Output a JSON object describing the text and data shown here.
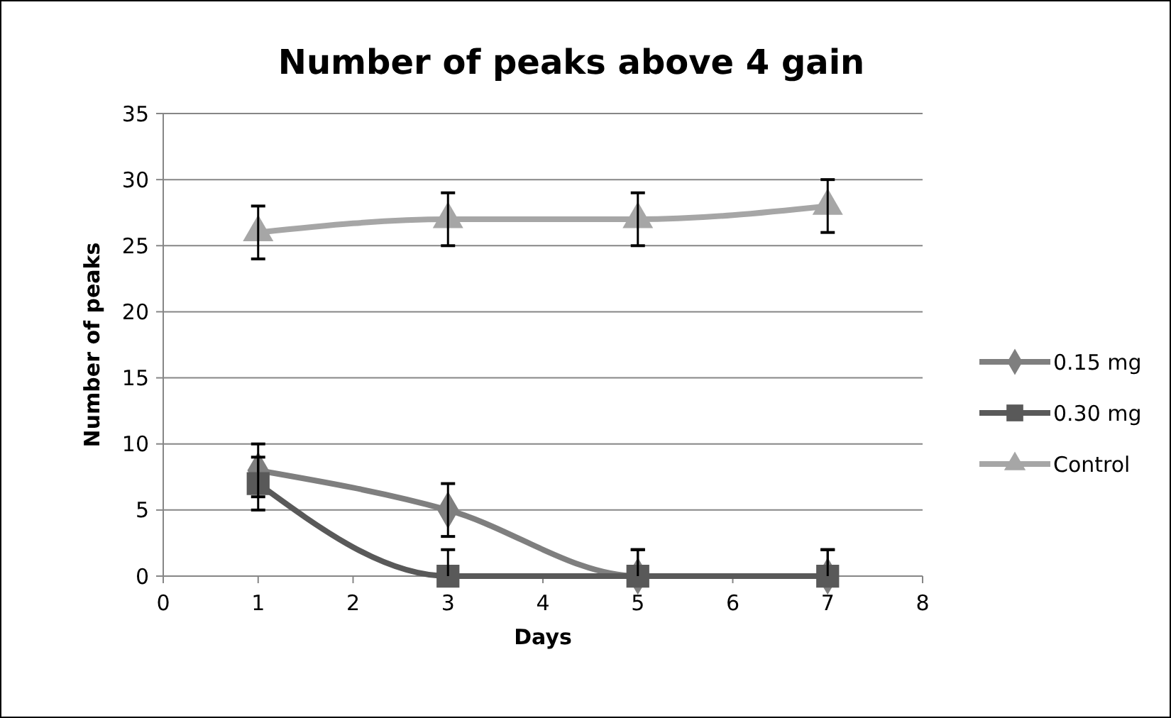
{
  "chart_data": {
    "type": "line",
    "title": "Number of peaks above 4 gain",
    "xlabel": "Days",
    "ylabel": "Number of peaks",
    "x": [
      1,
      3,
      5,
      7
    ],
    "xlim": [
      0,
      8
    ],
    "xticks": [
      0,
      1,
      2,
      3,
      4,
      5,
      6,
      7,
      8
    ],
    "ylim": [
      0,
      35
    ],
    "yticks": [
      0,
      5,
      10,
      15,
      20,
      25,
      30,
      35
    ],
    "grid": "y",
    "legend": "right",
    "series": [
      {
        "name": "0.15 mg",
        "color": "#7f7f7f",
        "marker": "diamond",
        "values": [
          8,
          5,
          0,
          0
        ],
        "errors": [
          2,
          2,
          [
            0,
            2
          ],
          [
            0,
            2
          ]
        ]
      },
      {
        "name": "0.30 mg",
        "color": "#595959",
        "marker": "square",
        "values": [
          7,
          0,
          0,
          0
        ],
        "errors": [
          2,
          [
            0,
            2
          ],
          [
            0,
            2
          ],
          [
            0,
            2
          ]
        ]
      },
      {
        "name": "Control",
        "color": "#a6a6a6",
        "marker": "triangle",
        "values": [
          26,
          27,
          27,
          28
        ],
        "errors": [
          2,
          2,
          2,
          2
        ]
      }
    ]
  }
}
